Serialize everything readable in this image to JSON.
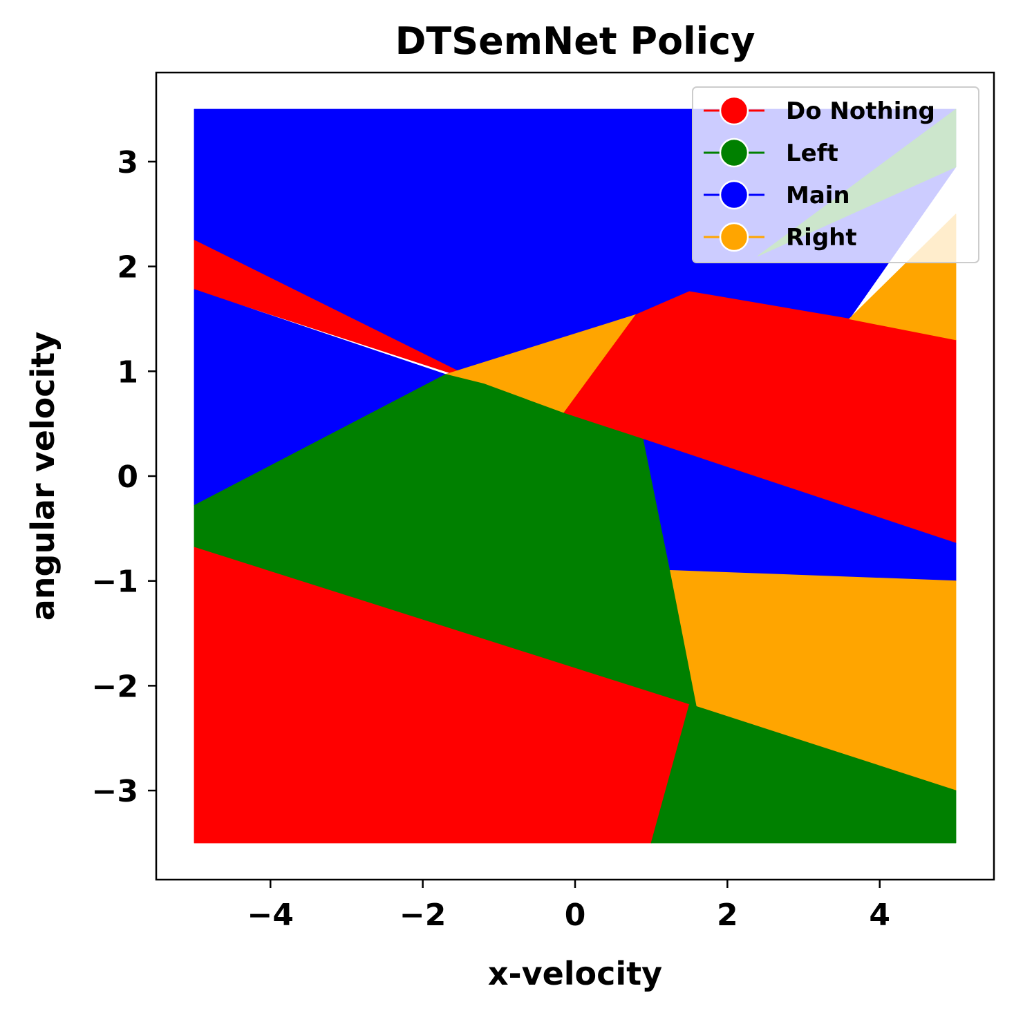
{
  "chart_data": {
    "type": "area",
    "title": "DTSemNet Policy",
    "xlabel": "x-velocity",
    "ylabel": "angular velocity",
    "xlim": [
      -5.5,
      5.5
    ],
    "ylim": [
      -3.85,
      3.85
    ],
    "x_ticks": [
      -4,
      -2,
      0,
      2,
      4
    ],
    "x_tick_labels": [
      "−4",
      "−2",
      "0",
      "2",
      "4"
    ],
    "y_ticks": [
      -3,
      -2,
      -1,
      0,
      1,
      2,
      3
    ],
    "y_tick_labels": [
      "−3",
      "−2",
      "−1",
      "0",
      "1",
      "2",
      "3"
    ],
    "grid": false,
    "legend_position": "top-right",
    "legend": [
      {
        "name": "Do Nothing",
        "color": "#ff0000"
      },
      {
        "name": "Left",
        "color": "#008000"
      },
      {
        "name": "Main",
        "color": "#0000ff"
      },
      {
        "name": "Right",
        "color": "#ffa500"
      }
    ],
    "domain": {
      "x": [
        -5,
        5
      ],
      "y": [
        -3.5,
        3.5
      ]
    },
    "regions": [
      {
        "action": "Main",
        "color": "#0000ff",
        "vertices": [
          [
            -5,
            3.5
          ],
          [
            5,
            3.5
          ],
          [
            5,
            2.95
          ],
          [
            3.6,
            1.5
          ],
          [
            1.5,
            1.76
          ],
          [
            0.8,
            1.54
          ],
          [
            -1.7,
            0.97
          ],
          [
            -1.2,
            0.88
          ],
          [
            -5,
            2.25
          ]
        ]
      },
      {
        "action": "Do Nothing",
        "color": "#ff0000",
        "vertices": [
          [
            -5,
            2.25
          ],
          [
            -1.2,
            0.88
          ],
          [
            -5,
            1.78
          ]
        ]
      },
      {
        "action": "Main",
        "color": "#0000ff",
        "vertices": [
          [
            -5,
            1.78
          ],
          [
            -1.7,
            0.97
          ],
          [
            -5,
            -0.28
          ]
        ]
      },
      {
        "action": "Right",
        "color": "#ffa500",
        "vertices": [
          [
            -1.2,
            0.88
          ],
          [
            -1.7,
            0.97
          ],
          [
            0.8,
            1.54
          ],
          [
            -0.15,
            0.6
          ]
        ]
      },
      {
        "action": "Do Nothing",
        "color": "#ff0000",
        "vertices": [
          [
            0.8,
            1.54
          ],
          [
            1.5,
            1.76
          ],
          [
            3.6,
            1.5
          ],
          [
            5,
            1.3
          ],
          [
            5,
            -0.64
          ],
          [
            -0.15,
            0.6
          ]
        ]
      },
      {
        "action": "Right",
        "color": "#ffa500",
        "vertices": [
          [
            3.6,
            1.5
          ],
          [
            5,
            2.5
          ],
          [
            5,
            1.3
          ]
        ]
      },
      {
        "action": "Left",
        "color": "#008000",
        "vertices": [
          [
            2.4,
            2.1
          ],
          [
            5,
            3.5
          ],
          [
            5,
            2.95
          ]
        ]
      },
      {
        "action": "Left",
        "color": "#008000",
        "vertices": [
          [
            -5,
            -0.28
          ],
          [
            -1.7,
            0.97
          ],
          [
            -1.2,
            0.88
          ],
          [
            -0.15,
            0.6
          ],
          [
            0.9,
            0.35
          ],
          [
            1.6,
            -2.2
          ],
          [
            1.5,
            -2.18
          ],
          [
            -5,
            -0.68
          ]
        ]
      },
      {
        "action": "Main",
        "color": "#0000ff",
        "vertices": [
          [
            0.9,
            0.35
          ],
          [
            5,
            -0.64
          ],
          [
            5,
            -1.0
          ],
          [
            1.25,
            -0.9
          ]
        ]
      },
      {
        "action": "Right",
        "color": "#ffa500",
        "vertices": [
          [
            1.25,
            -0.9
          ],
          [
            5,
            -1.0
          ],
          [
            5,
            -3.0
          ],
          [
            1.6,
            -2.2
          ]
        ]
      },
      {
        "action": "Do Nothing",
        "color": "#ff0000",
        "vertices": [
          [
            -5,
            -0.68
          ],
          [
            1.5,
            -2.18
          ],
          [
            1.0,
            -3.5
          ],
          [
            -5,
            -3.5
          ]
        ]
      },
      {
        "action": "Left",
        "color": "#008000",
        "vertices": [
          [
            1.5,
            -2.18
          ],
          [
            1.6,
            -2.2
          ],
          [
            5,
            -3.0
          ],
          [
            5,
            -3.5
          ],
          [
            1.0,
            -3.5
          ]
        ]
      }
    ]
  }
}
